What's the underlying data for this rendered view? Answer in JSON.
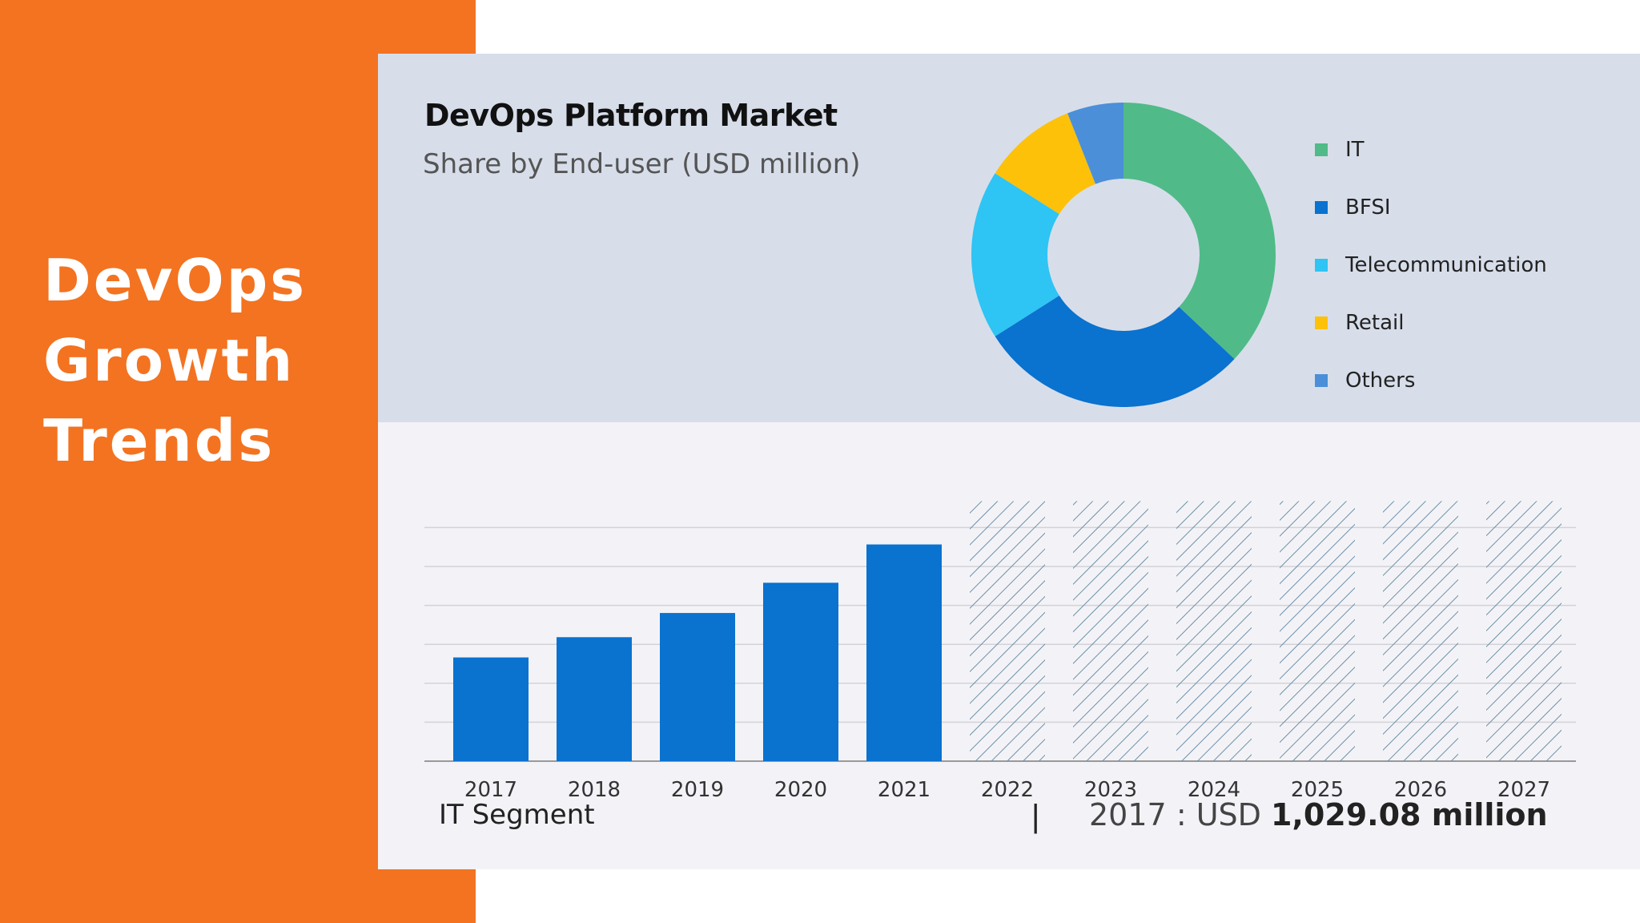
{
  "hero": {
    "lines": [
      "DevOps",
      "Growth",
      "Trends"
    ]
  },
  "colors": {
    "bar": "#0a72cf",
    "forecast": "#7a9ab0",
    "grid": "#d2d2d8",
    "axis": "#999999"
  },
  "chart_data": [
    {
      "type": "pie",
      "title": "DevOps Platform Market",
      "subtitle": "Share by End-user (USD million)",
      "labels": [
        "IT",
        "BFSI",
        "Telecommunication",
        "Retail",
        "Others"
      ],
      "values": [
        37,
        29,
        18,
        10,
        6
      ],
      "colors": [
        "#50bb88",
        "#0a72cf",
        "#2ec4f4",
        "#fdc10a",
        "#4b8fd8"
      ],
      "legend_position": "right"
    },
    {
      "type": "bar",
      "categories": [
        "2017",
        "2018",
        "2019",
        "2020",
        "2021",
        "2022",
        "2023",
        "2024",
        "2025",
        "2026",
        "2027"
      ],
      "values": [
        1029.08,
        1230,
        1470,
        1770,
        2150,
        null,
        null,
        null,
        null,
        null,
        null
      ],
      "forecast": [
        false,
        false,
        false,
        false,
        false,
        true,
        true,
        true,
        true,
        true,
        true
      ],
      "forecast_placeholder_value": 2580,
      "ylim": [
        0,
        3000
      ],
      "grid": true,
      "segment_label": "IT Segment",
      "separator": "|",
      "readout_year": "2017",
      "readout_prefix": ": USD",
      "readout_value": "1,029.08 million"
    }
  ]
}
